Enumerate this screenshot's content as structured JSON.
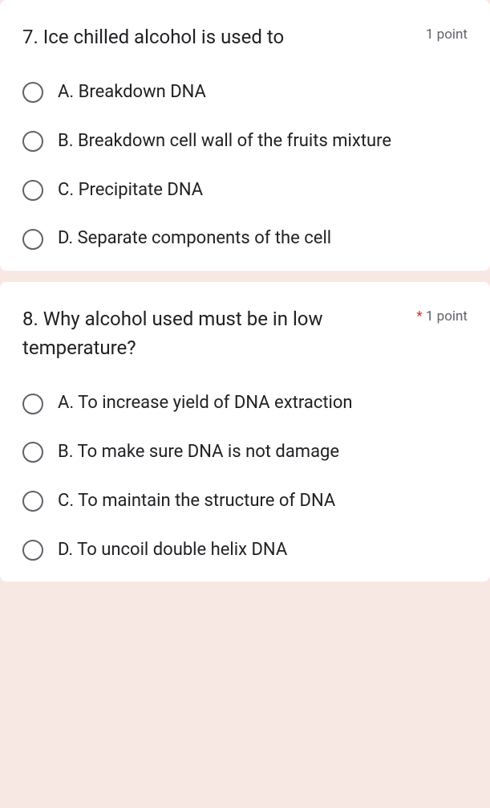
{
  "questions": [
    {
      "number": "7.",
      "text": "Ice chilled alcohol is used to",
      "points": "1 point",
      "required": false,
      "options": [
        "A. Breakdown DNA",
        "B. Breakdown cell wall of the fruits mixture",
        "C. Precipitate DNA",
        "D. Separate components of the cell"
      ]
    },
    {
      "number": "8.",
      "text": "Why alcohol used must be in low temperature?",
      "points": "1 point",
      "required": true,
      "options": [
        "A. To increase yield of DNA extraction",
        "B. To make sure DNA is not damage",
        "C. To maintain the structure of DNA",
        "D. To uncoil double helix DNA"
      ]
    }
  ],
  "colors": {
    "background": "#f8e8e4",
    "card_background": "#ffffff",
    "text_primary": "#202124",
    "text_secondary": "#5f6368",
    "required_marker": "#d93025",
    "radio_border": "#5f6368"
  }
}
